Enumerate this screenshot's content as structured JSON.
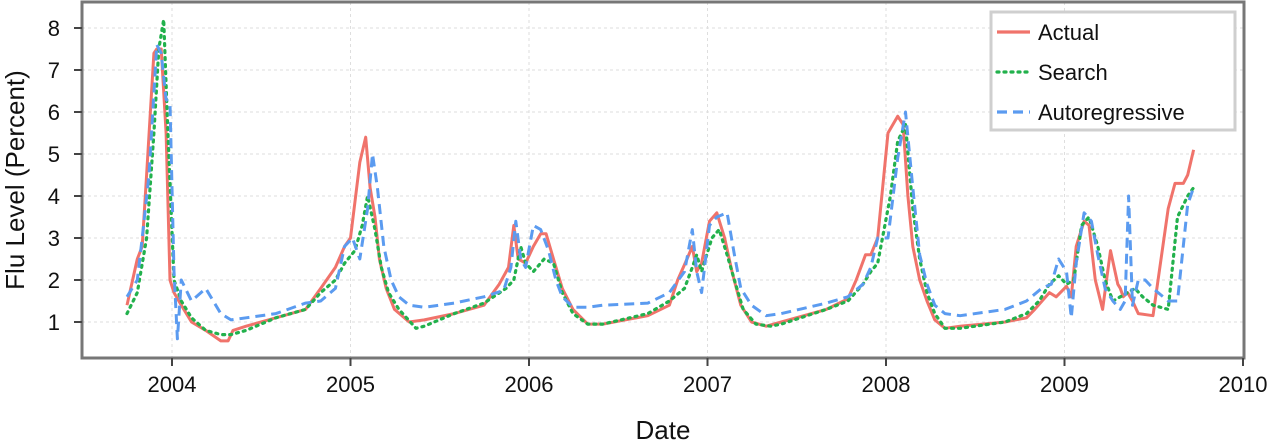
{
  "chart_data": {
    "type": "line",
    "title": "",
    "xlabel": "Date",
    "ylabel": "Flu Level (Percent)",
    "xlim": [
      "2003-07-01",
      "2010-01-01"
    ],
    "ylim": [
      0,
      8.5
    ],
    "xticks": [
      "2004",
      "2005",
      "2006",
      "2007",
      "2008",
      "2009",
      "2010"
    ],
    "yticks": [
      1,
      2,
      3,
      4,
      5,
      6,
      7,
      8
    ],
    "grid": true,
    "legend_position": "top-right",
    "series": [
      {
        "name": "Actual",
        "color": "#f0736b",
        "style": "solid",
        "x": [
          "2003-10-01",
          "2003-10-22",
          "2003-11-01",
          "2003-11-10",
          "2003-11-25",
          "2003-12-01",
          "2003-12-10",
          "2003-12-20",
          "2003-12-28",
          "2004-01-05",
          "2004-01-20",
          "2004-02-10",
          "2004-03-10",
          "2004-04-10",
          "2004-04-25",
          "2004-05-05",
          "2004-06-01",
          "2004-08-01",
          "2004-10-01",
          "2004-11-01",
          "2004-12-01",
          "2004-12-20",
          "2005-01-01",
          "2005-01-20",
          "2005-02-01",
          "2005-02-10",
          "2005-02-20",
          "2005-03-01",
          "2005-03-15",
          "2005-04-01",
          "2005-05-01",
          "2005-06-01",
          "2005-08-01",
          "2005-10-01",
          "2005-11-01",
          "2005-11-20",
          "2005-12-01",
          "2005-12-10",
          "2005-12-25",
          "2006-01-10",
          "2006-01-25",
          "2006-02-05",
          "2006-02-20",
          "2006-03-10",
          "2006-04-01",
          "2006-05-01",
          "2006-06-01",
          "2006-09-01",
          "2006-10-15",
          "2006-11-01",
          "2006-11-20",
          "2006-12-01",
          "2006-12-10",
          "2006-12-20",
          "2007-01-05",
          "2007-01-20",
          "2007-02-05",
          "2007-02-20",
          "2007-03-10",
          "2007-04-01",
          "2007-05-01",
          "2007-06-01",
          "2007-09-01",
          "2007-10-15",
          "2007-11-01",
          "2007-11-20",
          "2007-12-01",
          "2007-12-15",
          "2008-01-05",
          "2008-01-25",
          "2008-02-05",
          "2008-02-15",
          "2008-02-25",
          "2008-03-10",
          "2008-03-25",
          "2008-04-10",
          "2008-05-01",
          "2008-06-01",
          "2008-09-01",
          "2008-10-15",
          "2008-11-01",
          "2008-12-01",
          "2008-12-15",
          "2009-01-05",
          "2009-01-15",
          "2009-01-25",
          "2009-02-10",
          "2009-02-20",
          "2009-03-05",
          "2009-03-20",
          "2009-04-05",
          "2009-04-20",
          "2009-04-25",
          "2009-05-01",
          "2009-05-10",
          "2009-05-20",
          "2009-06-01",
          "2009-07-01",
          "2009-08-01",
          "2009-08-15",
          "2009-09-01",
          "2009-09-10",
          "2009-09-22"
        ],
        "y": [
          1.4,
          2.5,
          2.8,
          4.5,
          7.4,
          7.5,
          7.5,
          5.5,
          2.0,
          1.7,
          1.4,
          1.0,
          0.8,
          0.55,
          0.55,
          0.8,
          0.9,
          1.1,
          1.3,
          1.8,
          2.3,
          2.8,
          3.0,
          4.8,
          5.4,
          4.2,
          3.5,
          2.5,
          1.8,
          1.3,
          1.0,
          1.05,
          1.2,
          1.4,
          1.9,
          2.3,
          3.3,
          2.5,
          2.4,
          2.8,
          3.1,
          3.1,
          2.5,
          1.8,
          1.3,
          0.95,
          0.95,
          1.15,
          1.4,
          2.0,
          2.5,
          2.8,
          2.2,
          2.4,
          3.4,
          3.6,
          3.0,
          2.2,
          1.4,
          1.0,
          0.9,
          1.0,
          1.3,
          1.55,
          2.0,
          2.6,
          2.6,
          3.0,
          5.5,
          5.9,
          5.7,
          4.0,
          2.8,
          2.0,
          1.5,
          1.05,
          0.85,
          0.9,
          1.0,
          1.1,
          1.3,
          1.7,
          1.6,
          1.85,
          1.6,
          2.8,
          3.4,
          3.3,
          2.0,
          1.3,
          2.7,
          1.9,
          1.8,
          1.6,
          1.7,
          1.5,
          1.2,
          1.15,
          3.7,
          4.3,
          4.3,
          4.5,
          5.1
        ]
      },
      {
        "name": "Search",
        "color": "#22b14c",
        "style": "dotted",
        "x": [
          "2003-10-01",
          "2003-10-22",
          "2003-11-10",
          "2003-11-25",
          "2003-12-05",
          "2003-12-15",
          "2003-12-22",
          "2004-01-05",
          "2004-01-20",
          "2004-02-10",
          "2004-03-10",
          "2004-04-10",
          "2004-05-01",
          "2004-06-01",
          "2004-08-01",
          "2004-10-01",
          "2004-11-01",
          "2004-12-01",
          "2004-12-20",
          "2005-01-10",
          "2005-01-25",
          "2005-02-05",
          "2005-02-20",
          "2005-03-05",
          "2005-03-20",
          "2005-04-10",
          "2005-05-15",
          "2005-06-01",
          "2005-08-01",
          "2005-10-01",
          "2005-11-15",
          "2005-12-01",
          "2005-12-15",
          "2005-12-25",
          "2006-01-10",
          "2006-02-01",
          "2006-02-20",
          "2006-03-10",
          "2006-04-01",
          "2006-05-01",
          "2006-06-01",
          "2006-09-01",
          "2006-10-15",
          "2006-11-15",
          "2006-12-01",
          "2006-12-10",
          "2006-12-20",
          "2007-01-10",
          "2007-01-25",
          "2007-02-10",
          "2007-02-25",
          "2007-03-15",
          "2007-04-10",
          "2007-05-10",
          "2007-06-01",
          "2007-09-01",
          "2007-10-15",
          "2007-11-15",
          "2007-12-01",
          "2007-12-15",
          "2008-01-10",
          "2008-01-25",
          "2008-02-10",
          "2008-02-25",
          "2008-03-10",
          "2008-03-25",
          "2008-04-10",
          "2008-05-01",
          "2008-06-01",
          "2008-09-01",
          "2008-10-15",
          "2008-11-10",
          "2008-12-01",
          "2008-12-20",
          "2009-01-05",
          "2009-01-20",
          "2009-02-05",
          "2009-02-20",
          "2009-03-10",
          "2009-03-25",
          "2009-04-10",
          "2009-04-25",
          "2009-05-10",
          "2009-05-25",
          "2009-06-10",
          "2009-07-01",
          "2009-08-01",
          "2009-08-20",
          "2009-09-10",
          "2009-09-22"
        ],
        "y": [
          1.2,
          1.7,
          3.0,
          5.5,
          7.5,
          8.2,
          6.0,
          2.0,
          1.5,
          1.1,
          0.8,
          0.7,
          0.7,
          0.8,
          1.1,
          1.3,
          1.7,
          2.0,
          2.4,
          2.7,
          3.3,
          4.0,
          3.2,
          2.3,
          1.7,
          1.3,
          0.85,
          0.9,
          1.2,
          1.45,
          1.8,
          2.0,
          2.8,
          2.4,
          2.2,
          2.5,
          2.4,
          1.7,
          1.2,
          0.95,
          0.95,
          1.2,
          1.5,
          1.8,
          2.3,
          2.6,
          2.2,
          3.0,
          3.2,
          2.6,
          2.0,
          1.3,
          0.95,
          0.9,
          0.95,
          1.3,
          1.5,
          1.9,
          2.2,
          2.4,
          4.0,
          5.3,
          5.7,
          3.7,
          2.5,
          1.7,
          1.2,
          0.85,
          0.85,
          1.0,
          1.2,
          1.5,
          1.9,
          2.1,
          1.9,
          2.0,
          3.3,
          3.5,
          2.8,
          2.0,
          1.5,
          1.6,
          1.7,
          1.8,
          1.6,
          1.4,
          1.3,
          3.5,
          4.0,
          4.2
        ]
      },
      {
        "name": "Autoregressive",
        "color": "#5b9bf0",
        "style": "dashed",
        "x": [
          "2003-10-01",
          "2003-10-22",
          "2003-11-01",
          "2003-11-15",
          "2003-12-01",
          "2003-12-10",
          "2003-12-20",
          "2003-12-28",
          "2004-01-05",
          "2004-01-12",
          "2004-01-20",
          "2004-02-10",
          "2004-03-10",
          "2004-04-10",
          "2004-05-01",
          "2004-06-01",
          "2004-08-01",
          "2004-10-01",
          "2004-11-01",
          "2004-12-01",
          "2004-12-20",
          "2005-01-05",
          "2005-01-20",
          "2005-02-05",
          "2005-02-15",
          "2005-02-25",
          "2005-03-10",
          "2005-03-25",
          "2005-04-10",
          "2005-05-01",
          "2005-06-01",
          "2005-08-01",
          "2005-10-01",
          "2005-11-10",
          "2005-11-25",
          "2005-12-05",
          "2005-12-15",
          "2005-12-25",
          "2006-01-10",
          "2006-01-25",
          "2006-02-10",
          "2006-02-25",
          "2006-03-10",
          "2006-04-01",
          "2006-05-01",
          "2006-06-01",
          "2006-09-01",
          "2006-10-15",
          "2006-11-15",
          "2006-12-01",
          "2006-12-10",
          "2006-12-20",
          "2007-01-05",
          "2007-01-20",
          "2007-02-10",
          "2007-02-25",
          "2007-03-10",
          "2007-04-01",
          "2007-05-01",
          "2007-06-01",
          "2007-09-01",
          "2007-10-15",
          "2007-11-15",
          "2007-12-01",
          "2007-12-15",
          "2008-01-05",
          "2008-01-25",
          "2008-02-10",
          "2008-02-25",
          "2008-03-10",
          "2008-03-25",
          "2008-04-10",
          "2008-05-01",
          "2008-06-01",
          "2008-09-01",
          "2008-10-15",
          "2008-11-15",
          "2008-12-05",
          "2008-12-20",
          "2009-01-05",
          "2009-01-15",
          "2009-01-25",
          "2009-02-10",
          "2009-02-25",
          "2009-03-10",
          "2009-03-25",
          "2009-04-10",
          "2009-04-25",
          "2009-05-05",
          "2009-05-12",
          "2009-05-20",
          "2009-06-01",
          "2009-06-15",
          "2009-07-01",
          "2009-08-01",
          "2009-08-20",
          "2009-09-10",
          "2009-09-22"
        ],
        "y": [
          1.6,
          2.0,
          3.0,
          4.5,
          7.6,
          7.4,
          6.3,
          6.2,
          2.2,
          0.6,
          2.0,
          1.5,
          1.8,
          1.2,
          1.05,
          1.1,
          1.2,
          1.45,
          1.5,
          1.8,
          2.8,
          3.0,
          2.5,
          3.7,
          5.0,
          4.2,
          2.8,
          2.0,
          1.6,
          1.4,
          1.35,
          1.45,
          1.6,
          1.75,
          2.3,
          3.4,
          2.5,
          2.3,
          3.3,
          3.2,
          2.7,
          2.0,
          1.6,
          1.35,
          1.35,
          1.4,
          1.45,
          1.7,
          2.2,
          3.2,
          2.2,
          1.7,
          3.3,
          3.5,
          3.6,
          2.6,
          1.8,
          1.4,
          1.15,
          1.2,
          1.45,
          1.6,
          1.9,
          2.3,
          3.0,
          3.0,
          4.9,
          6.0,
          4.2,
          2.6,
          1.9,
          1.4,
          1.2,
          1.15,
          1.3,
          1.5,
          1.8,
          1.9,
          2.5,
          2.2,
          1.1,
          2.4,
          3.6,
          3.4,
          2.6,
          1.8,
          1.5,
          1.3,
          1.5,
          4.0,
          1.4,
          2.0,
          2.0,
          1.8,
          1.5,
          1.5,
          3.8,
          4.2
        ]
      }
    ]
  }
}
